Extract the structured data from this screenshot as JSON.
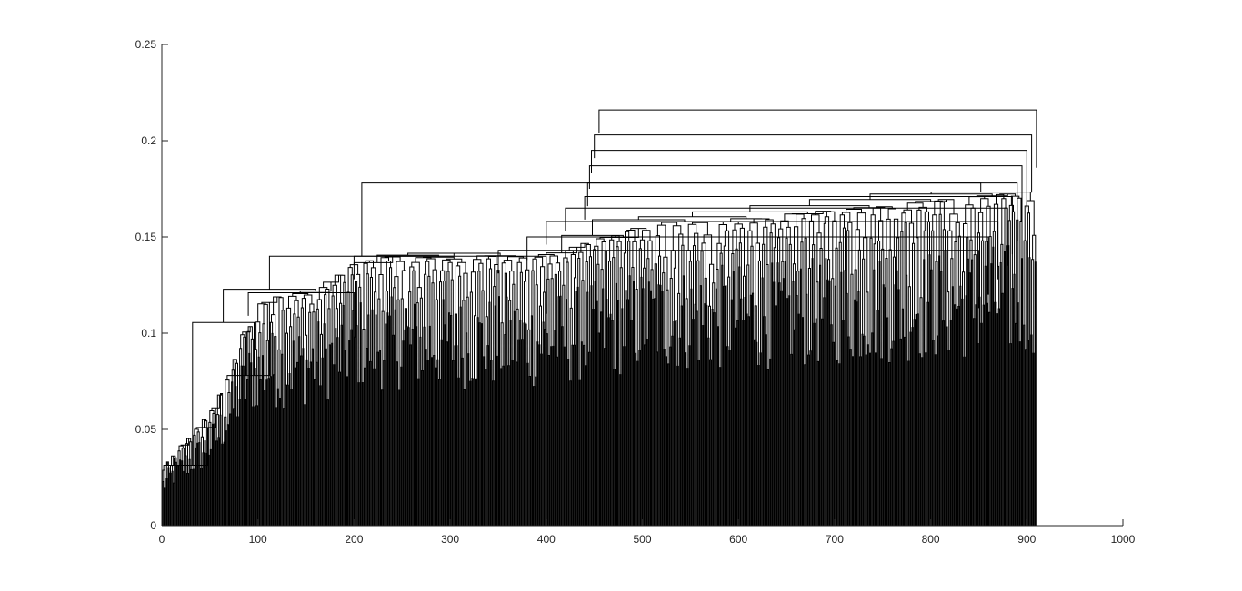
{
  "chart_data": {
    "type": "dendrogram",
    "title": "",
    "xlabel": "",
    "ylabel": "",
    "xlim": [
      0,
      1000
    ],
    "ylim": [
      0,
      0.25
    ],
    "x_ticks": [
      0,
      100,
      200,
      300,
      400,
      500,
      600,
      700,
      800,
      900,
      1000
    ],
    "x_tick_labels": [
      "0",
      "100",
      "200",
      "300",
      "400",
      "500",
      "600",
      "700",
      "800",
      "900",
      "1000"
    ],
    "y_ticks": [
      0,
      0.05,
      0.1,
      0.15,
      0.2,
      0.25
    ],
    "y_tick_labels": [
      "0",
      "0.05",
      "0.1",
      "0.15",
      "0.2",
      "0.25"
    ],
    "grid": false,
    "leaf_count": 910,
    "line_color": "#000000",
    "top_merges": [
      {
        "x_left": 455,
        "x_right": 910,
        "height": 0.216
      },
      {
        "x_left": 450,
        "x_right": 905,
        "height": 0.203
      },
      {
        "x_left": 447,
        "x_right": 900,
        "height": 0.195
      },
      {
        "x_left": 445,
        "x_right": 895,
        "height": 0.187
      },
      {
        "x_left": 443,
        "x_right": 890,
        "height": 0.178
      },
      {
        "x_left": 440,
        "x_right": 885,
        "height": 0.171
      },
      {
        "x_left": 420,
        "x_right": 880,
        "height": 0.165
      },
      {
        "x_left": 400,
        "x_right": 870,
        "height": 0.158
      },
      {
        "x_left": 380,
        "x_right": 860,
        "height": 0.15
      },
      {
        "x_left": 350,
        "x_right": 850,
        "height": 0.143
      },
      {
        "x_left": 200,
        "x_right": 400,
        "height": 0.14
      },
      {
        "x_left": 90,
        "x_right": 200,
        "height": 0.121
      }
    ],
    "envelope": [
      [
        0,
        0.031
      ],
      [
        10,
        0.038
      ],
      [
        25,
        0.047
      ],
      [
        40,
        0.055
      ],
      [
        55,
        0.066
      ],
      [
        70,
        0.085
      ],
      [
        80,
        0.1
      ],
      [
        90,
        0.112
      ],
      [
        100,
        0.118
      ],
      [
        120,
        0.121
      ],
      [
        150,
        0.124
      ],
      [
        180,
        0.131
      ],
      [
        200,
        0.14
      ],
      [
        300,
        0.14
      ],
      [
        350,
        0.141
      ],
      [
        400,
        0.142
      ],
      [
        450,
        0.15
      ],
      [
        500,
        0.158
      ],
      [
        600,
        0.16
      ],
      [
        700,
        0.165
      ],
      [
        800,
        0.17
      ],
      [
        850,
        0.172
      ],
      [
        900,
        0.175
      ],
      [
        910,
        0.18
      ]
    ]
  }
}
